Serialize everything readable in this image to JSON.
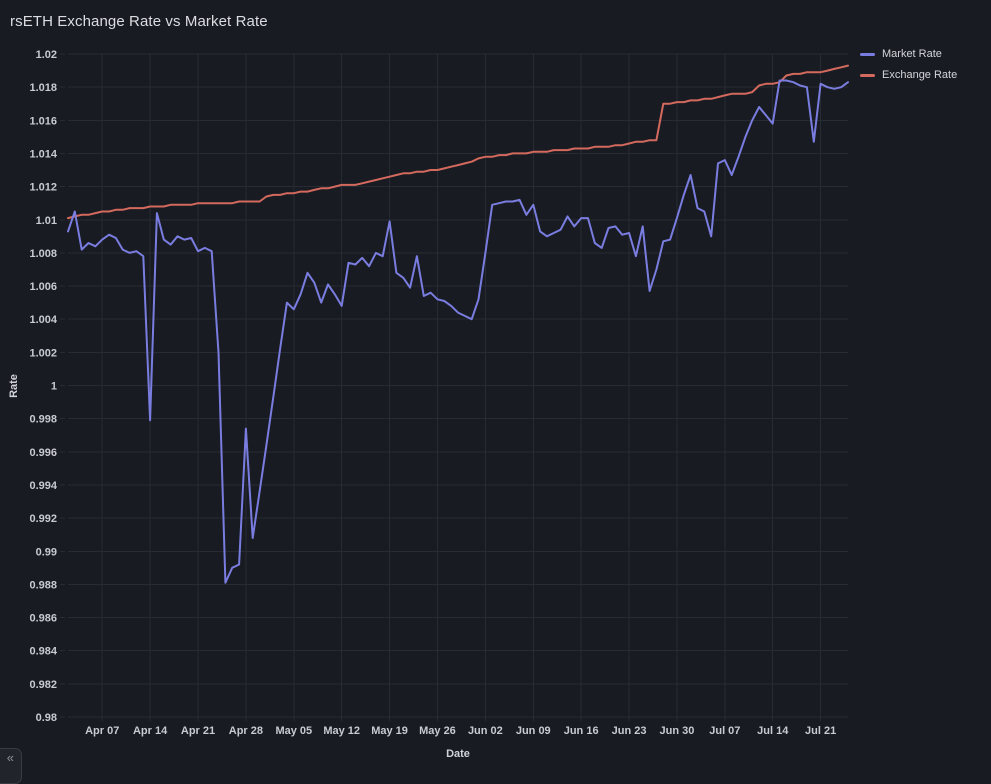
{
  "panel": {
    "title": "rsETH Exchange Rate vs Market Rate"
  },
  "sidebar_toggle": {
    "icon": "«"
  },
  "colors": {
    "background": "#181B21",
    "gridline": "#272B33",
    "tick_text": "#C9CAD2",
    "title_text": "#DCDDE2",
    "market_rate": "#7A7DE0",
    "exchange_rate": "#D4695E"
  },
  "chart_data": {
    "type": "line",
    "title": "rsETH Exchange Rate vs Market Rate",
    "xlabel": "Date",
    "ylabel": "Rate",
    "ylim": [
      0.98,
      1.02
    ],
    "y_tick_step": 0.002,
    "grid": true,
    "legend_position": "top-right",
    "y_tick_labels": [
      "1.02",
      "1.018",
      "1.016",
      "1.014",
      "1.012",
      "1.01",
      "1.008",
      "1.006",
      "1.004",
      "1.002",
      "1",
      "0.998",
      "0.996",
      "0.994",
      "0.992",
      "0.99",
      "0.988",
      "0.986",
      "0.984",
      "0.982",
      "0.98"
    ],
    "x_ticks": [
      {
        "i": 5,
        "label": "Apr 07"
      },
      {
        "i": 12,
        "label": "Apr 14"
      },
      {
        "i": 19,
        "label": "Apr 21"
      },
      {
        "i": 26,
        "label": "Apr 28"
      },
      {
        "i": 33,
        "label": "May 05"
      },
      {
        "i": 40,
        "label": "May 12"
      },
      {
        "i": 47,
        "label": "May 19"
      },
      {
        "i": 54,
        "label": "May 26"
      },
      {
        "i": 61,
        "label": "Jun 02"
      },
      {
        "i": 68,
        "label": "Jun 09"
      },
      {
        "i": 75,
        "label": "Jun 16"
      },
      {
        "i": 82,
        "label": "Jun 23"
      },
      {
        "i": 89,
        "label": "Jun 30"
      },
      {
        "i": 96,
        "label": "Jul 07"
      },
      {
        "i": 103,
        "label": "Jul 14"
      },
      {
        "i": 110,
        "label": "Jul 21"
      }
    ],
    "x": [
      "Apr 02",
      "Apr 03",
      "Apr 04",
      "Apr 05",
      "Apr 06",
      "Apr 07",
      "Apr 08",
      "Apr 09",
      "Apr 10",
      "Apr 11",
      "Apr 12",
      "Apr 13",
      "Apr 14",
      "Apr 15",
      "Apr 16",
      "Apr 17",
      "Apr 18",
      "Apr 19",
      "Apr 20",
      "Apr 21",
      "Apr 22",
      "Apr 23",
      "Apr 24",
      "Apr 25",
      "Apr 26",
      "Apr 27",
      "Apr 28",
      "Apr 29",
      "Apr 30",
      "May 01",
      "May 02",
      "May 03",
      "May 04",
      "May 05",
      "May 06",
      "May 07",
      "May 08",
      "May 09",
      "May 10",
      "May 11",
      "May 12",
      "May 13",
      "May 14",
      "May 15",
      "May 16",
      "May 17",
      "May 18",
      "May 19",
      "May 20",
      "May 21",
      "May 22",
      "May 23",
      "May 24",
      "May 25",
      "May 26",
      "May 27",
      "May 28",
      "May 29",
      "May 30",
      "May 31",
      "Jun 01",
      "Jun 02",
      "Jun 03",
      "Jun 04",
      "Jun 05",
      "Jun 06",
      "Jun 07",
      "Jun 08",
      "Jun 09",
      "Jun 10",
      "Jun 11",
      "Jun 12",
      "Jun 13",
      "Jun 14",
      "Jun 15",
      "Jun 16",
      "Jun 17",
      "Jun 18",
      "Jun 19",
      "Jun 20",
      "Jun 21",
      "Jun 22",
      "Jun 23",
      "Jun 24",
      "Jun 25",
      "Jun 26",
      "Jun 27",
      "Jun 28",
      "Jun 29",
      "Jun 30",
      "Jul 01",
      "Jul 02",
      "Jul 03",
      "Jul 04",
      "Jul 05",
      "Jul 06",
      "Jul 07",
      "Jul 08",
      "Jul 09",
      "Jul 10",
      "Jul 11",
      "Jul 12",
      "Jul 13",
      "Jul 14",
      "Jul 15",
      "Jul 16",
      "Jul 17",
      "Jul 18",
      "Jul 19",
      "Jul 20",
      "Jul 21",
      "Jul 22",
      "Jul 23",
      "Jul 24",
      "Jul 25"
    ],
    "series": [
      {
        "name": "Market Rate",
        "color": "#7A7DE0",
        "values": [
          1.0093,
          1.0105,
          1.0082,
          1.0086,
          1.0084,
          1.0088,
          1.0091,
          1.0089,
          1.0082,
          1.008,
          1.0081,
          1.0078,
          0.9979,
          1.0104,
          1.0088,
          1.0085,
          1.009,
          1.0088,
          1.0089,
          1.0081,
          1.0083,
          1.0081,
          1.002,
          0.9881,
          0.989,
          0.9892,
          0.9974,
          0.9908,
          0.9936,
          0.9964,
          0.9993,
          1.0022,
          1.005,
          1.0046,
          1.0055,
          1.0068,
          1.0062,
          1.005,
          1.0061,
          1.0055,
          1.0048,
          1.0074,
          1.0073,
          1.0077,
          1.0072,
          1.008,
          1.0078,
          1.0099,
          1.0068,
          1.0065,
          1.0059,
          1.0078,
          1.0054,
          1.0056,
          1.0052,
          1.0051,
          1.0048,
          1.0044,
          1.0042,
          1.004,
          1.0052,
          1.008,
          1.0109,
          1.011,
          1.0111,
          1.0111,
          1.0112,
          1.0103,
          1.0109,
          1.0093,
          1.009,
          1.0092,
          1.0094,
          1.0102,
          1.0096,
          1.0101,
          1.0101,
          1.0086,
          1.0083,
          1.0095,
          1.0096,
          1.0091,
          1.0092,
          1.0078,
          1.0096,
          1.0057,
          1.007,
          1.0087,
          1.0088,
          1.0101,
          1.0115,
          1.0127,
          1.0107,
          1.0105,
          1.009,
          1.0134,
          1.0136,
          1.0127,
          1.0138,
          1.015,
          1.016,
          1.0168,
          1.0163,
          1.0158,
          1.0184,
          1.0184,
          1.0183,
          1.0181,
          1.018,
          1.0147,
          1.0182,
          1.018,
          1.0179,
          1.018,
          1.0183
        ]
      },
      {
        "name": "Exchange Rate",
        "color": "#D4695E",
        "values": [
          1.0101,
          1.0102,
          1.0103,
          1.0103,
          1.0104,
          1.0105,
          1.0105,
          1.0106,
          1.0106,
          1.0107,
          1.0107,
          1.0107,
          1.0108,
          1.0108,
          1.0108,
          1.0109,
          1.0109,
          1.0109,
          1.0109,
          1.011,
          1.011,
          1.011,
          1.011,
          1.011,
          1.011,
          1.0111,
          1.0111,
          1.0111,
          1.0111,
          1.0114,
          1.0115,
          1.0115,
          1.0116,
          1.0116,
          1.0117,
          1.0117,
          1.0118,
          1.0119,
          1.0119,
          1.012,
          1.0121,
          1.0121,
          1.0121,
          1.0122,
          1.0123,
          1.0124,
          1.0125,
          1.0126,
          1.0127,
          1.0128,
          1.0128,
          1.0129,
          1.0129,
          1.013,
          1.013,
          1.0131,
          1.0132,
          1.0133,
          1.0134,
          1.0135,
          1.0137,
          1.0138,
          1.0138,
          1.0139,
          1.0139,
          1.014,
          1.014,
          1.014,
          1.0141,
          1.0141,
          1.0141,
          1.0142,
          1.0142,
          1.0142,
          1.0143,
          1.0143,
          1.0143,
          1.0144,
          1.0144,
          1.0144,
          1.0145,
          1.0145,
          1.0146,
          1.0147,
          1.0147,
          1.0148,
          1.0148,
          1.017,
          1.017,
          1.0171,
          1.0171,
          1.0172,
          1.0172,
          1.0173,
          1.0173,
          1.0174,
          1.0175,
          1.0176,
          1.0176,
          1.0176,
          1.0177,
          1.0181,
          1.0182,
          1.0182,
          1.0183,
          1.0187,
          1.0188,
          1.0188,
          1.0189,
          1.0189,
          1.0189,
          1.019,
          1.0191,
          1.0192,
          1.0193
        ]
      }
    ]
  },
  "legend": {
    "items": [
      {
        "label": "Market Rate",
        "color": "#7A7DE0"
      },
      {
        "label": "Exchange Rate",
        "color": "#D4695E"
      }
    ]
  }
}
